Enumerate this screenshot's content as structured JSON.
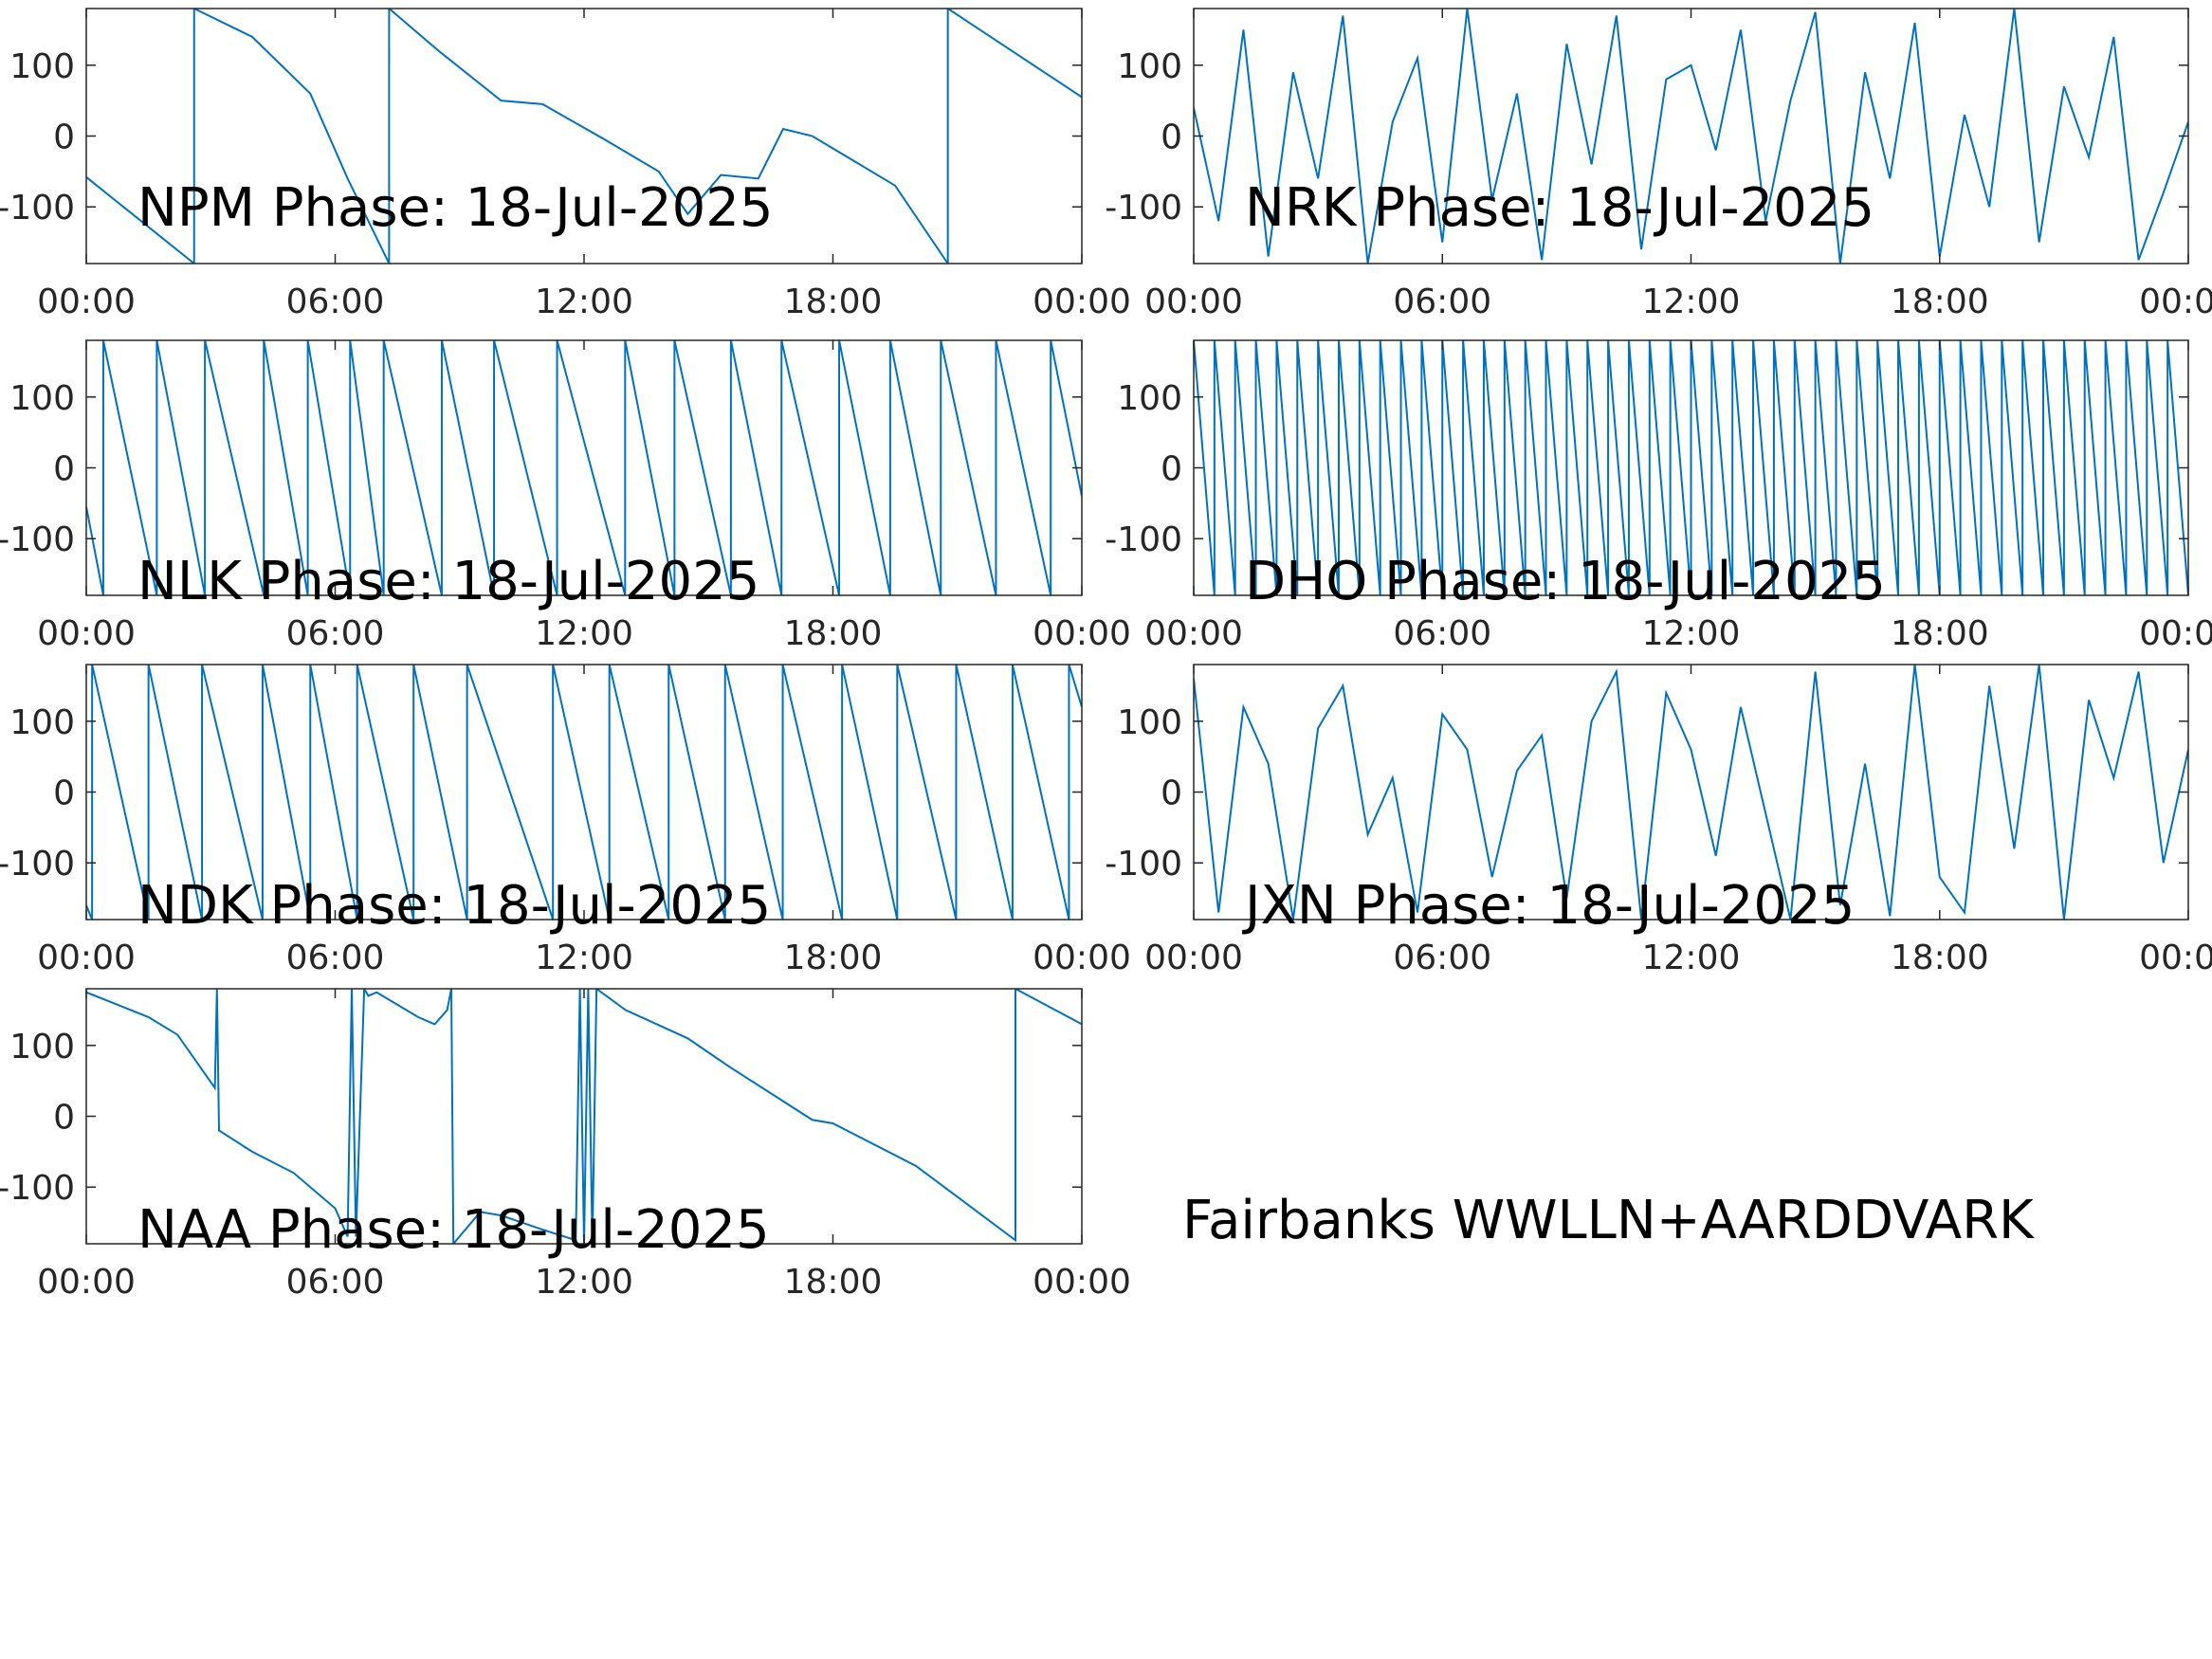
{
  "chart_data": [
    {
      "type": "line",
      "title": "NPM Phase: 18-Jul-2025",
      "x": [
        0,
        2.6,
        2.6,
        4,
        5.4,
        6.3,
        7.3,
        7.3,
        8.5,
        10,
        11,
        12.5,
        13.8,
        14.5,
        15.3,
        16.2,
        16.8,
        17.5,
        19.5,
        20.77,
        20.77,
        24
      ],
      "series": [
        {
          "color": "#0072bd",
          "values": [
            -58,
            -180,
            180,
            140,
            60,
            -60,
            -180,
            180,
            120,
            50,
            45,
            -5,
            -50,
            -110,
            -55,
            -60,
            10,
            0,
            -70,
            -180,
            180,
            55
          ]
        }
      ],
      "xlim": [
        0,
        24
      ],
      "ylim": [
        -180,
        180
      ],
      "xticks": [
        {
          "value": 0,
          "label": "00:00"
        },
        {
          "value": 6,
          "label": "06:00"
        },
        {
          "value": 12,
          "label": "12:00"
        },
        {
          "value": 18,
          "label": "18:00"
        },
        {
          "value": 24,
          "label": "00:00"
        }
      ],
      "yticks": [
        -100,
        0,
        100
      ]
    },
    {
      "type": "line",
      "title": "NRK Phase: 18-Jul-2025",
      "x": [
        0,
        0.6,
        1.2,
        1.8,
        2.4,
        3,
        3.6,
        4.2,
        4.8,
        5.4,
        6,
        6.6,
        7.2,
        7.8,
        8.4,
        9,
        9.6,
        10.2,
        10.8,
        11.4,
        12,
        12.6,
        13.2,
        13.8,
        14.4,
        15,
        15.6,
        16.2,
        16.8,
        17.4,
        18,
        18.6,
        19.2,
        19.8,
        20.4,
        21,
        21.6,
        22.2,
        22.8,
        23.4,
        24
      ],
      "series": [
        {
          "color": "#0072bd",
          "values": [
            40,
            -120,
            150,
            -170,
            90,
            -60,
            170,
            -180,
            20,
            110,
            -150,
            180,
            -90,
            60,
            -175,
            130,
            -40,
            170,
            -160,
            80,
            100,
            -20,
            150,
            -120,
            50,
            175,
            -180,
            90,
            -60,
            160,
            -170,
            30,
            -100,
            180,
            -150,
            70,
            -30,
            140,
            -175,
            -80,
            20
          ]
        }
      ],
      "xlim": [
        0,
        24
      ],
      "ylim": [
        -180,
        180
      ],
      "xticks": [
        {
          "value": 0,
          "label": "00:00"
        },
        {
          "value": 6,
          "label": "06:00"
        },
        {
          "value": 12,
          "label": "12:00"
        },
        {
          "value": 18,
          "label": "18:00"
        },
        {
          "value": 24,
          "label": "00:00"
        }
      ],
      "yticks": [
        -100,
        0,
        100
      ]
    },
    {
      "type": "line",
      "title": "NLK Phase: 18-Jul-2025",
      "x": [
        0,
        0.41,
        0.41,
        1.7,
        1.7,
        2.86,
        2.86,
        4.28,
        4.28,
        5.34,
        5.34,
        6.36,
        6.36,
        7.17,
        7.17,
        8.57,
        8.57,
        9.83,
        9.83,
        11.35,
        11.35,
        12.99,
        12.99,
        14.18,
        14.18,
        15.54,
        15.54,
        16.76,
        16.76,
        18.15,
        18.15,
        19.38,
        19.38,
        20.6,
        20.6,
        21.93,
        21.93,
        23.25,
        23.25,
        24
      ],
      "series": [
        {
          "color": "#0072bd",
          "values": [
            -55,
            -180,
            180,
            -180,
            180,
            -180,
            180,
            -180,
            180,
            -180,
            180,
            -180,
            180,
            -180,
            180,
            -180,
            180,
            -180,
            180,
            -180,
            180,
            -180,
            180,
            -180,
            180,
            -180,
            180,
            -180,
            180,
            -180,
            180,
            -180,
            180,
            -180,
            180,
            -180,
            180,
            -180,
            180,
            -40
          ]
        }
      ],
      "xlim": [
        0,
        24
      ],
      "ylim": [
        -180,
        180
      ],
      "xticks": [
        {
          "value": 0,
          "label": "00:00"
        },
        {
          "value": 6,
          "label": "06:00"
        },
        {
          "value": 12,
          "label": "12:00"
        },
        {
          "value": 18,
          "label": "18:00"
        },
        {
          "value": 24,
          "label": "00:00"
        }
      ],
      "yticks": [
        -100,
        0,
        100
      ]
    },
    {
      "type": "line",
      "title": "DHO Phase: 18-Jul-2025",
      "x": [
        0,
        0.5,
        0.5,
        1,
        1,
        1.5,
        1.5,
        2,
        2,
        2.5,
        2.5,
        3,
        3,
        3.5,
        3.5,
        4,
        4,
        4.5,
        4.5,
        5,
        5,
        5.5,
        5.5,
        6,
        6,
        6.5,
        6.5,
        7,
        7,
        7.5,
        7.5,
        8,
        8,
        8.5,
        8.5,
        9,
        9,
        9.5,
        9.5,
        10,
        10,
        10.5,
        10.5,
        11,
        11,
        11.5,
        11.5,
        12,
        12,
        12.5,
        12.5,
        13,
        13,
        13.5,
        13.5,
        14,
        14,
        14.5,
        14.5,
        15,
        15,
        15.5,
        15.5,
        16,
        16,
        16.5,
        16.5,
        17,
        17,
        17.5,
        17.5,
        18,
        18,
        18.5,
        18.5,
        19,
        19,
        19.5,
        19.5,
        20,
        20,
        20.5,
        20.5,
        21,
        21,
        21.5,
        21.5,
        22,
        22,
        22.5,
        22.5,
        23,
        23,
        23.5,
        23.5,
        24
      ],
      "series": [
        {
          "color": "#0072bd",
          "values": [
            180,
            -180,
            180,
            -180,
            180,
            -180,
            180,
            -180,
            180,
            -180,
            180,
            -180,
            180,
            -180,
            180,
            -180,
            180,
            -180,
            180,
            -180,
            180,
            -180,
            180,
            -180,
            180,
            -180,
            180,
            -180,
            180,
            -180,
            180,
            -180,
            180,
            -180,
            180,
            -180,
            180,
            -180,
            180,
            -180,
            180,
            -180,
            180,
            -180,
            180,
            -180,
            180,
            -180,
            180,
            -180,
            180,
            -180,
            180,
            -180,
            180,
            -180,
            180,
            -180,
            180,
            -180,
            180,
            -180,
            180,
            -180,
            180,
            -180,
            180,
            -180,
            180,
            -180,
            180,
            -180,
            180,
            -180,
            180,
            -180,
            180,
            -180,
            180,
            -180,
            180,
            -180,
            180,
            -180,
            180,
            -180,
            180,
            -180,
            180,
            -180,
            180,
            -180,
            180,
            -180,
            180,
            -180
          ]
        }
      ],
      "xlim": [
        0,
        24
      ],
      "ylim": [
        -180,
        180
      ],
      "xticks": [
        {
          "value": 0,
          "label": "00:00"
        },
        {
          "value": 6,
          "label": "06:00"
        },
        {
          "value": 12,
          "label": "12:00"
        },
        {
          "value": 18,
          "label": "18:00"
        },
        {
          "value": 24,
          "label": "00:00"
        }
      ],
      "yticks": [
        -100,
        0,
        100
      ]
    },
    {
      "type": "line",
      "title": "NDK Phase: 18-Jul-2025",
      "x": [
        0,
        0.14,
        0.14,
        1.5,
        1.5,
        2.79,
        2.79,
        4.25,
        4.25,
        5.4,
        5.4,
        6.53,
        6.53,
        7.89,
        7.89,
        9.18,
        9.18,
        11.25,
        11.25,
        12.61,
        12.61,
        14.04,
        14.04,
        15.4,
        15.4,
        16.79,
        16.79,
        18.22,
        18.22,
        19.55,
        19.55,
        20.97,
        20.97,
        22.33,
        22.33,
        23.69,
        23.69,
        24
      ],
      "series": [
        {
          "color": "#0072bd",
          "values": [
            -160,
            -180,
            180,
            -180,
            180,
            -180,
            180,
            -180,
            180,
            -180,
            180,
            -180,
            180,
            -180,
            180,
            -180,
            180,
            -180,
            180,
            -180,
            180,
            -180,
            180,
            -180,
            180,
            -180,
            180,
            -180,
            180,
            -180,
            180,
            -180,
            180,
            -180,
            180,
            -180,
            180,
            120
          ]
        }
      ],
      "xlim": [
        0,
        24
      ],
      "ylim": [
        -180,
        180
      ],
      "xticks": [
        {
          "value": 0,
          "label": "00:00"
        },
        {
          "value": 6,
          "label": "06:00"
        },
        {
          "value": 12,
          "label": "12:00"
        },
        {
          "value": 18,
          "label": "18:00"
        },
        {
          "value": 24,
          "label": "00:00"
        }
      ],
      "yticks": [
        -100,
        0,
        100
      ]
    },
    {
      "type": "line",
      "title": "JXN Phase: 18-Jul-2025",
      "x": [
        0,
        0.6,
        1.2,
        1.8,
        2.4,
        3,
        3.6,
        4.2,
        4.8,
        5.4,
        6,
        6.6,
        7.2,
        7.8,
        8.4,
        9,
        9.6,
        10.2,
        10.8,
        11.4,
        12,
        12.6,
        13.2,
        13.8,
        14.4,
        15,
        15.6,
        16.2,
        16.8,
        17.4,
        18,
        18.6,
        19.2,
        19.8,
        20.4,
        21,
        21.6,
        22.2,
        22.8,
        23.4,
        24
      ],
      "series": [
        {
          "color": "#0072bd",
          "values": [
            160,
            -170,
            120,
            40,
            -180,
            90,
            150,
            -60,
            20,
            -170,
            110,
            60,
            -120,
            30,
            80,
            -150,
            100,
            170,
            -180,
            140,
            60,
            -90,
            120,
            -30,
            -180,
            170,
            -160,
            40,
            -175,
            180,
            -120,
            -170,
            150,
            -80,
            180,
            -180,
            130,
            20,
            170,
            -100,
            60
          ]
        }
      ],
      "xlim": [
        0,
        24
      ],
      "ylim": [
        -180,
        180
      ],
      "xticks": [
        {
          "value": 0,
          "label": "00:00"
        },
        {
          "value": 6,
          "label": "06:00"
        },
        {
          "value": 12,
          "label": "12:00"
        },
        {
          "value": 18,
          "label": "18:00"
        },
        {
          "value": 24,
          "label": "00:00"
        }
      ],
      "yticks": [
        -100,
        0,
        100
      ]
    },
    {
      "type": "line",
      "title": "NAA Phase: 18-Jul-2025",
      "x": [
        0,
        1.5,
        2.2,
        3.1,
        3.15,
        3.2,
        4,
        5,
        6,
        6.3,
        6.4,
        6.5,
        6.7,
        6.8,
        7,
        8,
        8.4,
        8.7,
        8.8,
        8.85,
        9.5,
        10,
        11,
        11.8,
        11.9,
        12,
        12.1,
        12.2,
        12.3,
        13,
        14.5,
        15.5,
        17.5,
        18,
        20,
        22.4,
        22.4,
        24
      ],
      "series": [
        {
          "color": "#0072bd",
          "values": [
            175,
            140,
            115,
            40,
            180,
            -20,
            -50,
            -80,
            -130,
            -170,
            180,
            -170,
            180,
            170,
            175,
            140,
            130,
            150,
            180,
            -180,
            -135,
            -140,
            -160,
            -175,
            180,
            -180,
            180,
            -180,
            180,
            150,
            110,
            70,
            -5,
            -10,
            -70,
            -175,
            180,
            130
          ]
        }
      ],
      "xlim": [
        0,
        24
      ],
      "ylim": [
        -180,
        180
      ],
      "xticks": [
        {
          "value": 0,
          "label": "00:00"
        },
        {
          "value": 6,
          "label": "06:00"
        },
        {
          "value": 12,
          "label": "12:00"
        },
        {
          "value": 18,
          "label": "18:00"
        },
        {
          "value": 24,
          "label": "00:00"
        }
      ],
      "yticks": [
        -100,
        0,
        100
      ]
    }
  ],
  "annotation": {
    "text": "Fairbanks WWLLN+AARDDVARK",
    "color": "#ff0000"
  }
}
